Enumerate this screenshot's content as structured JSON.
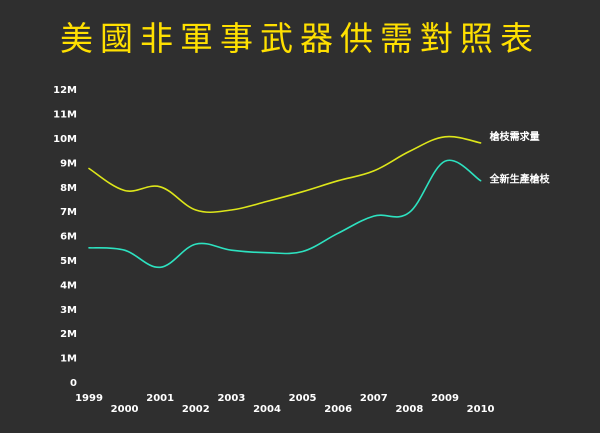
{
  "title": "美國非軍事武器供需對照表",
  "chart_data": {
    "type": "line",
    "title": "美國非軍事武器供需對照表",
    "xlabel": "",
    "ylabel": "",
    "x": [
      1999,
      2000,
      2001,
      2002,
      2003,
      2004,
      2005,
      2006,
      2007,
      2008,
      2009,
      2010
    ],
    "x_tick_labels": [
      "1999",
      "2000",
      "2001",
      "2002",
      "2003",
      "2004",
      "2005",
      "2006",
      "2007",
      "2008",
      "2009",
      "2010"
    ],
    "y_tick_labels": [
      "0",
      "1M",
      "2M",
      "3M",
      "4M",
      "5M",
      "6M",
      "7M",
      "8M",
      "9M",
      "10M",
      "11M",
      "12M"
    ],
    "ylim": [
      0,
      12000000
    ],
    "grid": false,
    "legend": "labels at right end of lines",
    "series": [
      {
        "name": "槍枝需求量",
        "color": "#dde61a",
        "values": [
          8750000,
          7850000,
          8000000,
          7050000,
          7050000,
          7400000,
          7800000,
          8250000,
          8650000,
          9450000,
          10050000,
          9800000
        ]
      },
      {
        "name": "全新生產槍枝",
        "color": "#2de2c0",
        "values": [
          5500000,
          5400000,
          4700000,
          5650000,
          5400000,
          5300000,
          5350000,
          6100000,
          6800000,
          6950000,
          9050000,
          8250000
        ]
      }
    ]
  }
}
